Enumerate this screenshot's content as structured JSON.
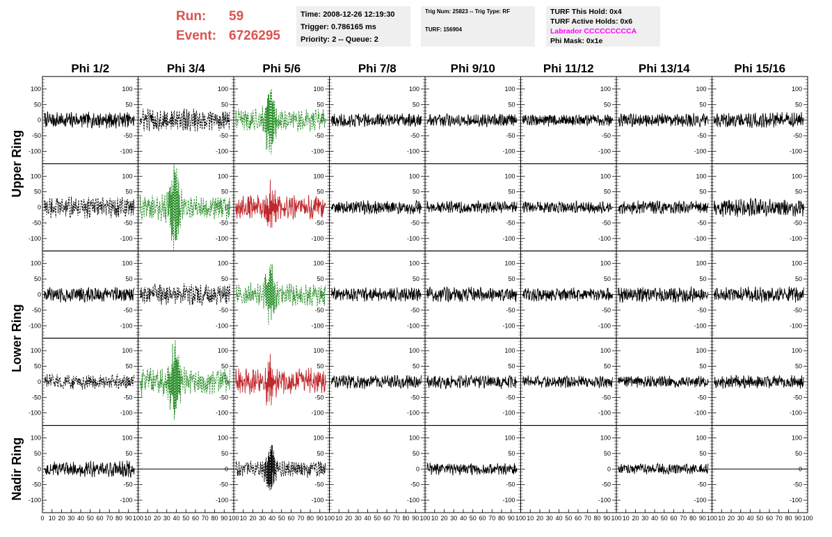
{
  "run": {
    "run_label": "Run:",
    "run_value": "59",
    "event_label": "Event:",
    "event_value": "6726295"
  },
  "info_boxes": {
    "time": "Time: 2008-12-26 12:19:30",
    "trigger": "Trigger: 0.786165 ms",
    "priority": "Priority: 2 -- Queue: 2",
    "trig_num": "Trig Num: 25823 -- Trig Type: RF",
    "turf": "TURF: 156904",
    "turf_this_hold": "TURF This Hold: 0x4",
    "turf_active_holds": "TURF Active Holds: 0x6",
    "labrador": "Labrador CCCCCCCCCA",
    "phi_mask": "Phi Mask: 0x1e"
  },
  "colors": {
    "title_red": "#d9534f",
    "info_bg": "#efefef",
    "magenta": "#ff00ff",
    "trace_black": "#000000",
    "trace_green": "#228b22",
    "trace_red": "#c0282d"
  },
  "chart_data": {
    "type": "line",
    "columns": [
      "Phi 1/2",
      "Phi 3/4",
      "Phi 5/6",
      "Phi 7/8",
      "Phi 9/10",
      "Phi 11/12",
      "Phi 13/14",
      "Phi 15/16"
    ],
    "rows": [
      "Upper Ring",
      "Lower Ring",
      "Nadir Ring"
    ],
    "panel_rows": 5,
    "x_ticks": [
      0,
      10,
      20,
      30,
      40,
      50,
      60,
      70,
      80,
      90,
      100
    ],
    "xlim": [
      0,
      100
    ],
    "y_ticks": [
      -100,
      -50,
      0,
      50,
      100
    ],
    "ylim": [
      -140,
      140
    ],
    "panels": [
      [
        {
          "style": "solid",
          "color": "black",
          "amp": 22
        },
        {
          "style": "dashed",
          "color": "black",
          "amp": 30
        },
        {
          "style": "dashed",
          "color": "green",
          "amp": 30,
          "peak": 110
        },
        {
          "style": "solid",
          "color": "black",
          "amp": 18
        },
        {
          "style": "solid",
          "color": "black",
          "amp": 18
        },
        {
          "style": "solid",
          "color": "black",
          "amp": 16
        },
        {
          "style": "solid",
          "color": "black",
          "amp": 18
        },
        {
          "style": "solid",
          "color": "black",
          "amp": 20
        }
      ],
      [
        {
          "style": "dashed",
          "color": "black",
          "amp": 28
        },
        {
          "style": "dashed",
          "color": "green",
          "amp": 35,
          "peak": 130
        },
        {
          "style": "solid",
          "color": "red",
          "amp": 32,
          "peak": 60
        },
        {
          "style": "solid",
          "color": "black",
          "amp": 18
        },
        {
          "style": "solid",
          "color": "black",
          "amp": 16
        },
        {
          "style": "solid",
          "color": "black",
          "amp": 16
        },
        {
          "style": "solid",
          "color": "black",
          "amp": 18
        },
        {
          "style": "solid",
          "color": "black",
          "amp": 24
        }
      ],
      [
        {
          "style": "solid",
          "color": "black",
          "amp": 20
        },
        {
          "style": "dashed",
          "color": "black",
          "amp": 28
        },
        {
          "style": "dashed",
          "color": "green",
          "amp": 30,
          "peak": 85
        },
        {
          "style": "solid",
          "color": "black",
          "amp": 18
        },
        {
          "style": "solid",
          "color": "black",
          "amp": 20
        },
        {
          "style": "solid",
          "color": "black",
          "amp": 18
        },
        {
          "style": "solid",
          "color": "black",
          "amp": 20
        },
        {
          "style": "solid",
          "color": "black",
          "amp": 20
        }
      ],
      [
        {
          "style": "dashed",
          "color": "black",
          "amp": 20
        },
        {
          "style": "dashed",
          "color": "green",
          "amp": 38,
          "peak": 115
        },
        {
          "style": "solid",
          "color": "red",
          "amp": 35,
          "peak": 55
        },
        {
          "style": "solid",
          "color": "black",
          "amp": 18
        },
        {
          "style": "solid",
          "color": "black",
          "amp": 18
        },
        {
          "style": "solid",
          "color": "black",
          "amp": 16
        },
        {
          "style": "solid",
          "color": "black",
          "amp": 16
        },
        {
          "style": "solid",
          "color": "black",
          "amp": 18
        }
      ],
      [
        {
          "style": "solid",
          "color": "black",
          "amp": 22
        },
        {
          "style": "flat",
          "color": "black",
          "amp": 0
        },
        {
          "style": "dashed",
          "color": "black",
          "amp": 22,
          "peak": 75
        },
        {
          "style": "empty"
        },
        {
          "style": "solid",
          "color": "black",
          "amp": 16
        },
        {
          "style": "empty"
        },
        {
          "style": "solid",
          "color": "black",
          "amp": 14
        },
        {
          "style": "flat",
          "color": "black",
          "amp": 0
        }
      ]
    ]
  }
}
